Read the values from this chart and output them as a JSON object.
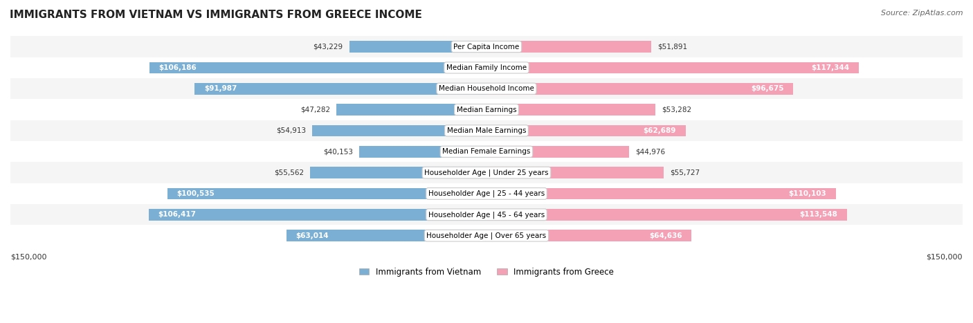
{
  "title": "IMMIGRANTS FROM VIETNAM VS IMMIGRANTS FROM GREECE INCOME",
  "source": "Source: ZipAtlas.com",
  "categories": [
    "Per Capita Income",
    "Median Family Income",
    "Median Household Income",
    "Median Earnings",
    "Median Male Earnings",
    "Median Female Earnings",
    "Householder Age | Under 25 years",
    "Householder Age | 25 - 44 years",
    "Householder Age | 45 - 64 years",
    "Householder Age | Over 65 years"
  ],
  "vietnam_values": [
    43229,
    106186,
    91987,
    47282,
    54913,
    40153,
    55562,
    100535,
    106417,
    63014
  ],
  "greece_values": [
    51891,
    117344,
    96675,
    53282,
    62689,
    44976,
    55727,
    110103,
    113548,
    64636
  ],
  "vietnam_labels": [
    "$43,229",
    "$106,186",
    "$91,987",
    "$47,282",
    "$54,913",
    "$40,153",
    "$55,562",
    "$100,535",
    "$106,417",
    "$63,014"
  ],
  "greece_labels": [
    "$51,891",
    "$117,344",
    "$96,675",
    "$53,282",
    "$62,689",
    "$44,976",
    "$55,727",
    "$110,103",
    "$113,548",
    "$64,636"
  ],
  "vietnam_color": "#7bafd4",
  "greece_color": "#f4a0b5",
  "vietnam_color_dark": "#5b8db8",
  "greece_color_dark": "#e8749a",
  "max_value": 150000,
  "bar_height": 0.55,
  "background_color": "#ffffff",
  "row_bg_odd": "#f5f5f5",
  "row_bg_even": "#ffffff",
  "legend_vietnam": "Immigrants from Vietnam",
  "legend_greece": "Immigrants from Greece",
  "xlabel_left": "$150,000",
  "xlabel_right": "$150,000"
}
